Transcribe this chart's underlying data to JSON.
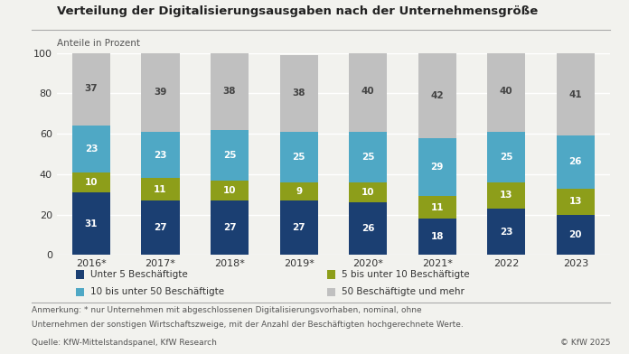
{
  "title": "Verteilung der Digitalisierungsausgaben nach der Unternehmensgröße",
  "ylabel": "Anteile in Prozent",
  "categories": [
    "2016*",
    "2017*",
    "2018*",
    "2019*",
    "2020*",
    "2021*",
    "2022",
    "2023"
  ],
  "series": {
    "unter5": [
      31,
      27,
      27,
      27,
      26,
      18,
      23,
      20
    ],
    "5bis10": [
      10,
      11,
      10,
      9,
      10,
      11,
      13,
      13
    ],
    "10bis50": [
      23,
      23,
      25,
      25,
      25,
      29,
      25,
      26
    ],
    "50mehr": [
      37,
      39,
      38,
      38,
      40,
      42,
      40,
      41
    ]
  },
  "colors": {
    "unter5": "#1b3f72",
    "5bis10": "#8d9e1a",
    "10bis50": "#4fa8c5",
    "50mehr": "#c0c0c0"
  },
  "legend_labels": [
    "Unter 5 Beschäftigte",
    "5 bis unter 10 Beschäftigte",
    "10 bis unter 50 Beschäftigte",
    "50 Beschäftigte und mehr"
  ],
  "footnote_line1": "Anmerkung: * nur Unternehmen mit abgeschlossenen Digitalisierungsvorhaben, nominal, ohne",
  "footnote_line2": "Unternehmen der sonstigen Wirtschaftszweige, mit der Anzahl der Beschäftigten hochgerechnete Werte.",
  "source": "Quelle: KfW-Mittelstandspanel, KfW Research",
  "copyright": "© KfW 2025",
  "ylim": [
    0,
    100
  ],
  "background_color": "#f2f2ee",
  "bar_width": 0.55
}
